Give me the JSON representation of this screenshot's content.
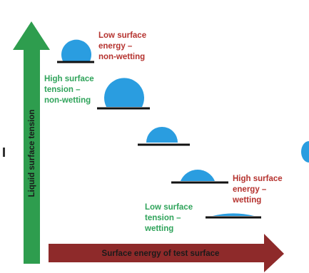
{
  "axes": {
    "y_label": "Liquid surface tension",
    "x_label": "Surface energy of test surface"
  },
  "annotations": {
    "top_red": [
      "Low surface",
      "energy –",
      "non-wetting"
    ],
    "top_green": [
      "High surface",
      "tension –",
      "non-wetting"
    ],
    "bottom_red": [
      "High surface",
      "energy –",
      "wetting"
    ],
    "bottom_green": [
      "Low surface",
      "tension –",
      "wetting"
    ]
  },
  "colors": {
    "droplet": "#2a9de0",
    "up_arrow": "#2e9d4e",
    "right_arrow": "#8e2a2a",
    "red_text": "#b5322e",
    "green_text": "#2fa35a",
    "surface_line": "#111111"
  }
}
